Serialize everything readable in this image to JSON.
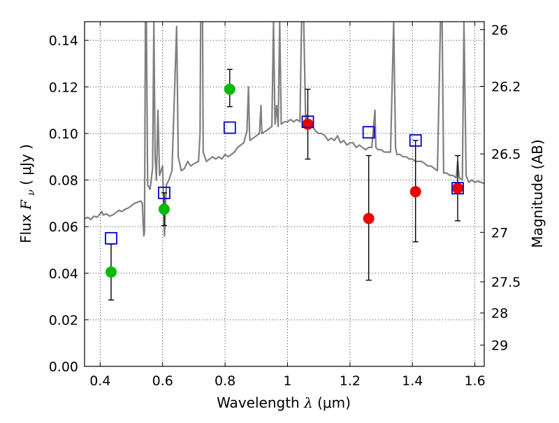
{
  "chart_data": {
    "type": "scatter",
    "xlabel": {
      "prefix": "Wavelength ",
      "symbol": "λ",
      "unit": "(μm)"
    },
    "ylabel": {
      "prefix": "Flux ",
      "symbol": "F",
      "subscript": "ν",
      "unit": "( μJy )"
    },
    "y2label": "Magnitude (AB)",
    "xlim": [
      0.35,
      1.63
    ],
    "ylim": [
      0.0,
      0.148
    ],
    "x_ticks": [
      0.4,
      0.6,
      0.8,
      1.0,
      1.2,
      1.4,
      1.6
    ],
    "x_tick_labels": [
      "0.4",
      "0.6",
      "0.8",
      "1",
      "1.2",
      "1.4",
      "1.6"
    ],
    "y_ticks": [
      0.0,
      0.02,
      0.04,
      0.06,
      0.08,
      0.1,
      0.12,
      0.14
    ],
    "y_tick_labels": [
      "0.00",
      "0.02",
      "0.04",
      "0.06",
      "0.08",
      "0.10",
      "0.12",
      "0.14"
    ],
    "magnitude_ticks": [
      {
        "mag": 26,
        "label": "26"
      },
      {
        "mag": 26.2,
        "label": "26.2"
      },
      {
        "mag": 26.5,
        "label": "26.5"
      },
      {
        "mag": 27,
        "label": "27"
      },
      {
        "mag": 27.5,
        "label": "27.5"
      },
      {
        "mag": 28,
        "label": "28"
      },
      {
        "mag": 29,
        "label": "29"
      }
    ],
    "grid": true,
    "colors": {
      "spectrum": "#808080",
      "green_points": "#00bb00",
      "red_points": "#ee0000",
      "model_squares": "#0000cc",
      "error_bars": "#000000"
    },
    "series": [
      {
        "type": "line",
        "points": [
          [
            0.35,
            0.0635
          ],
          [
            0.36,
            0.064
          ],
          [
            0.37,
            0.063
          ],
          [
            0.38,
            0.0645
          ],
          [
            0.39,
            0.064
          ],
          [
            0.4,
            0.0655
          ],
          [
            0.405,
            0.0665
          ],
          [
            0.41,
            0.065
          ],
          [
            0.42,
            0.0655
          ],
          [
            0.43,
            0.0645
          ],
          [
            0.44,
            0.065
          ],
          [
            0.45,
            0.066
          ],
          [
            0.46,
            0.067
          ],
          [
            0.47,
            0.0665
          ],
          [
            0.48,
            0.0675
          ],
          [
            0.49,
            0.068
          ],
          [
            0.5,
            0.069
          ],
          [
            0.51,
            0.07
          ],
          [
            0.52,
            0.0705
          ],
          [
            0.53,
            0.071
          ],
          [
            0.535,
            0.07
          ],
          [
            0.538,
            0.06
          ],
          [
            0.54,
            0.056
          ],
          [
            0.542,
            0.058
          ],
          [
            0.545,
            0.148
          ],
          [
            0.548,
            0.148
          ],
          [
            0.552,
            0.078
          ],
          [
            0.56,
            0.076
          ],
          [
            0.568,
            0.085
          ],
          [
            0.572,
            0.148
          ],
          [
            0.576,
            0.09
          ],
          [
            0.58,
            0.08
          ],
          [
            0.585,
            0.11
          ],
          [
            0.59,
            0.082
          ],
          [
            0.6,
            0.086
          ],
          [
            0.606,
            0.056
          ],
          [
            0.612,
            0.078
          ],
          [
            0.62,
            0.08
          ],
          [
            0.63,
            0.084
          ],
          [
            0.645,
            0.146
          ],
          [
            0.65,
            0.09
          ],
          [
            0.66,
            0.084
          ],
          [
            0.67,
            0.085
          ],
          [
            0.68,
            0.088
          ],
          [
            0.69,
            0.086
          ],
          [
            0.7,
            0.087
          ],
          [
            0.715,
            0.088
          ],
          [
            0.72,
            0.1
          ],
          [
            0.722,
            0.148
          ],
          [
            0.728,
            0.148
          ],
          [
            0.73,
            0.092
          ],
          [
            0.74,
            0.088
          ],
          [
            0.75,
            0.089
          ],
          [
            0.76,
            0.09
          ],
          [
            0.77,
            0.089
          ],
          [
            0.78,
            0.09
          ],
          [
            0.79,
            0.089
          ],
          [
            0.8,
            0.091
          ],
          [
            0.81,
            0.09
          ],
          [
            0.82,
            0.091
          ],
          [
            0.83,
            0.092
          ],
          [
            0.84,
            0.094
          ],
          [
            0.85,
            0.095
          ],
          [
            0.86,
            0.096
          ],
          [
            0.87,
            0.101
          ],
          [
            0.875,
            0.12
          ],
          [
            0.878,
            0.101
          ],
          [
            0.88,
            0.097
          ],
          [
            0.89,
            0.098
          ],
          [
            0.9,
            0.099
          ],
          [
            0.91,
            0.1
          ],
          [
            0.915,
            0.112
          ],
          [
            0.918,
            0.1
          ],
          [
            0.93,
            0.101
          ],
          [
            0.94,
            0.102
          ],
          [
            0.95,
            0.103
          ],
          [
            0.955,
            0.148
          ],
          [
            0.96,
            0.104
          ],
          [
            0.965,
            0.112
          ],
          [
            0.97,
            0.103
          ],
          [
            0.975,
            0.148
          ],
          [
            0.98,
            0.104
          ],
          [
            0.99,
            0.105
          ],
          [
            1.0,
            0.105
          ],
          [
            1.01,
            0.106
          ],
          [
            1.02,
            0.105
          ],
          [
            1.03,
            0.106
          ],
          [
            1.04,
            0.105
          ],
          [
            1.045,
            0.148
          ],
          [
            1.052,
            0.148
          ],
          [
            1.058,
            0.106
          ],
          [
            1.06,
            0.108
          ],
          [
            1.07,
            0.104
          ],
          [
            1.08,
            0.103
          ],
          [
            1.09,
            0.101
          ],
          [
            1.1,
            0.1
          ],
          [
            1.11,
            0.1
          ],
          [
            1.12,
            0.099
          ],
          [
            1.13,
            0.097
          ],
          [
            1.14,
            0.098
          ],
          [
            1.15,
            0.097
          ],
          [
            1.16,
            0.099
          ],
          [
            1.17,
            0.096
          ],
          [
            1.18,
            0.097
          ],
          [
            1.19,
            0.095
          ],
          [
            1.2,
            0.096
          ],
          [
            1.21,
            0.096
          ],
          [
            1.22,
            0.094
          ],
          [
            1.23,
            0.095
          ],
          [
            1.24,
            0.094
          ],
          [
            1.25,
            0.093
          ],
          [
            1.26,
            0.094
          ],
          [
            1.27,
            0.094
          ],
          [
            1.28,
            0.11
          ],
          [
            1.283,
            0.094
          ],
          [
            1.29,
            0.093
          ],
          [
            1.3,
            0.093
          ],
          [
            1.31,
            0.092
          ],
          [
            1.32,
            0.092
          ],
          [
            1.33,
            0.092
          ],
          [
            1.34,
            0.148
          ],
          [
            1.346,
            0.094
          ],
          [
            1.35,
            0.091
          ],
          [
            1.36,
            0.091
          ],
          [
            1.37,
            0.09
          ],
          [
            1.38,
            0.09
          ],
          [
            1.39,
            0.089
          ],
          [
            1.4,
            0.089
          ],
          [
            1.41,
            0.088
          ],
          [
            1.42,
            0.088
          ],
          [
            1.43,
            0.088
          ],
          [
            1.44,
            0.087
          ],
          [
            1.45,
            0.086
          ],
          [
            1.46,
            0.086
          ],
          [
            1.47,
            0.085
          ],
          [
            1.48,
            0.084
          ],
          [
            1.49,
            0.148
          ],
          [
            1.495,
            0.148
          ],
          [
            1.5,
            0.083
          ],
          [
            1.51,
            0.083
          ],
          [
            1.52,
            0.082
          ],
          [
            1.53,
            0.082
          ],
          [
            1.54,
            0.081
          ],
          [
            1.545,
            0.088
          ],
          [
            1.55,
            0.081
          ],
          [
            1.56,
            0.08
          ],
          [
            1.565,
            0.148
          ],
          [
            1.572,
            0.082
          ],
          [
            1.58,
            0.079
          ],
          [
            1.59,
            0.08
          ],
          [
            1.6,
            0.079
          ],
          [
            1.61,
            0.0795
          ],
          [
            1.62,
            0.079
          ],
          [
            1.63,
            0.0785
          ]
        ]
      },
      {
        "type": "scatter",
        "marker": "circle",
        "color_key": "green_points",
        "points": [
          {
            "x": 0.435,
            "y": 0.0405,
            "err_low": 0.0285,
            "err_high": 0.0525
          },
          {
            "x": 0.605,
            "y": 0.0675,
            "err_low": 0.0605,
            "err_high": 0.0745
          },
          {
            "x": 0.815,
            "y": 0.119,
            "err_low": 0.1115,
            "err_high": 0.1275
          }
        ]
      },
      {
        "type": "scatter",
        "marker": "circle",
        "color_key": "red_points",
        "points": [
          {
            "x": 1.065,
            "y": 0.104,
            "err_low": 0.089,
            "err_high": 0.119
          },
          {
            "x": 1.26,
            "y": 0.0635,
            "err_low": 0.037,
            "err_high": 0.0905
          },
          {
            "x": 1.41,
            "y": 0.075,
            "err_low": 0.0535,
            "err_high": 0.097
          },
          {
            "x": 1.545,
            "y": 0.0765,
            "err_low": 0.0625,
            "err_high": 0.0905
          }
        ]
      },
      {
        "type": "scatter",
        "marker": "open-square",
        "color_key": "model_squares",
        "points": [
          {
            "x": 0.435,
            "y": 0.055
          },
          {
            "x": 0.605,
            "y": 0.0745
          },
          {
            "x": 0.815,
            "y": 0.1025
          },
          {
            "x": 1.065,
            "y": 0.105
          },
          {
            "x": 1.26,
            "y": 0.1005
          },
          {
            "x": 1.41,
            "y": 0.097
          },
          {
            "x": 1.545,
            "y": 0.0765
          }
        ]
      }
    ]
  }
}
